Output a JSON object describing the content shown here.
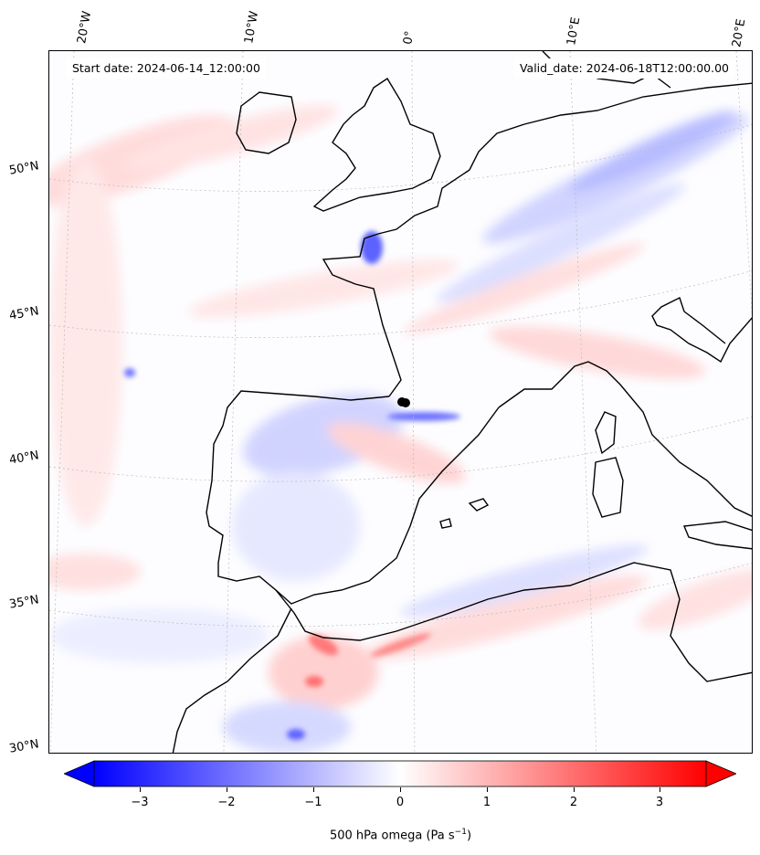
{
  "map": {
    "start_date": "Start date: 2024-06-14_12:00:00",
    "valid_date": "Valid_date: 2024-06-18T12:00:00.00",
    "lon_labels": [
      "20°W",
      "10°W",
      "0°",
      "10°E",
      "20°E"
    ],
    "lat_labels": [
      "50°N",
      "45°N",
      "40°N",
      "35°N",
      "30°N"
    ]
  },
  "colorbar": {
    "label": "500 hPa omega (Pa s",
    "label_sup": "−1",
    "label_end": ")",
    "ticks": [
      "−3",
      "−2",
      "−1",
      "0",
      "1",
      "2",
      "3"
    ],
    "min_color": "#0000ff",
    "mid_color": "#ffffff",
    "max_color": "#ff0000"
  },
  "colors": {
    "coastline": "#000000",
    "gridline": "#bbbbbb"
  }
}
